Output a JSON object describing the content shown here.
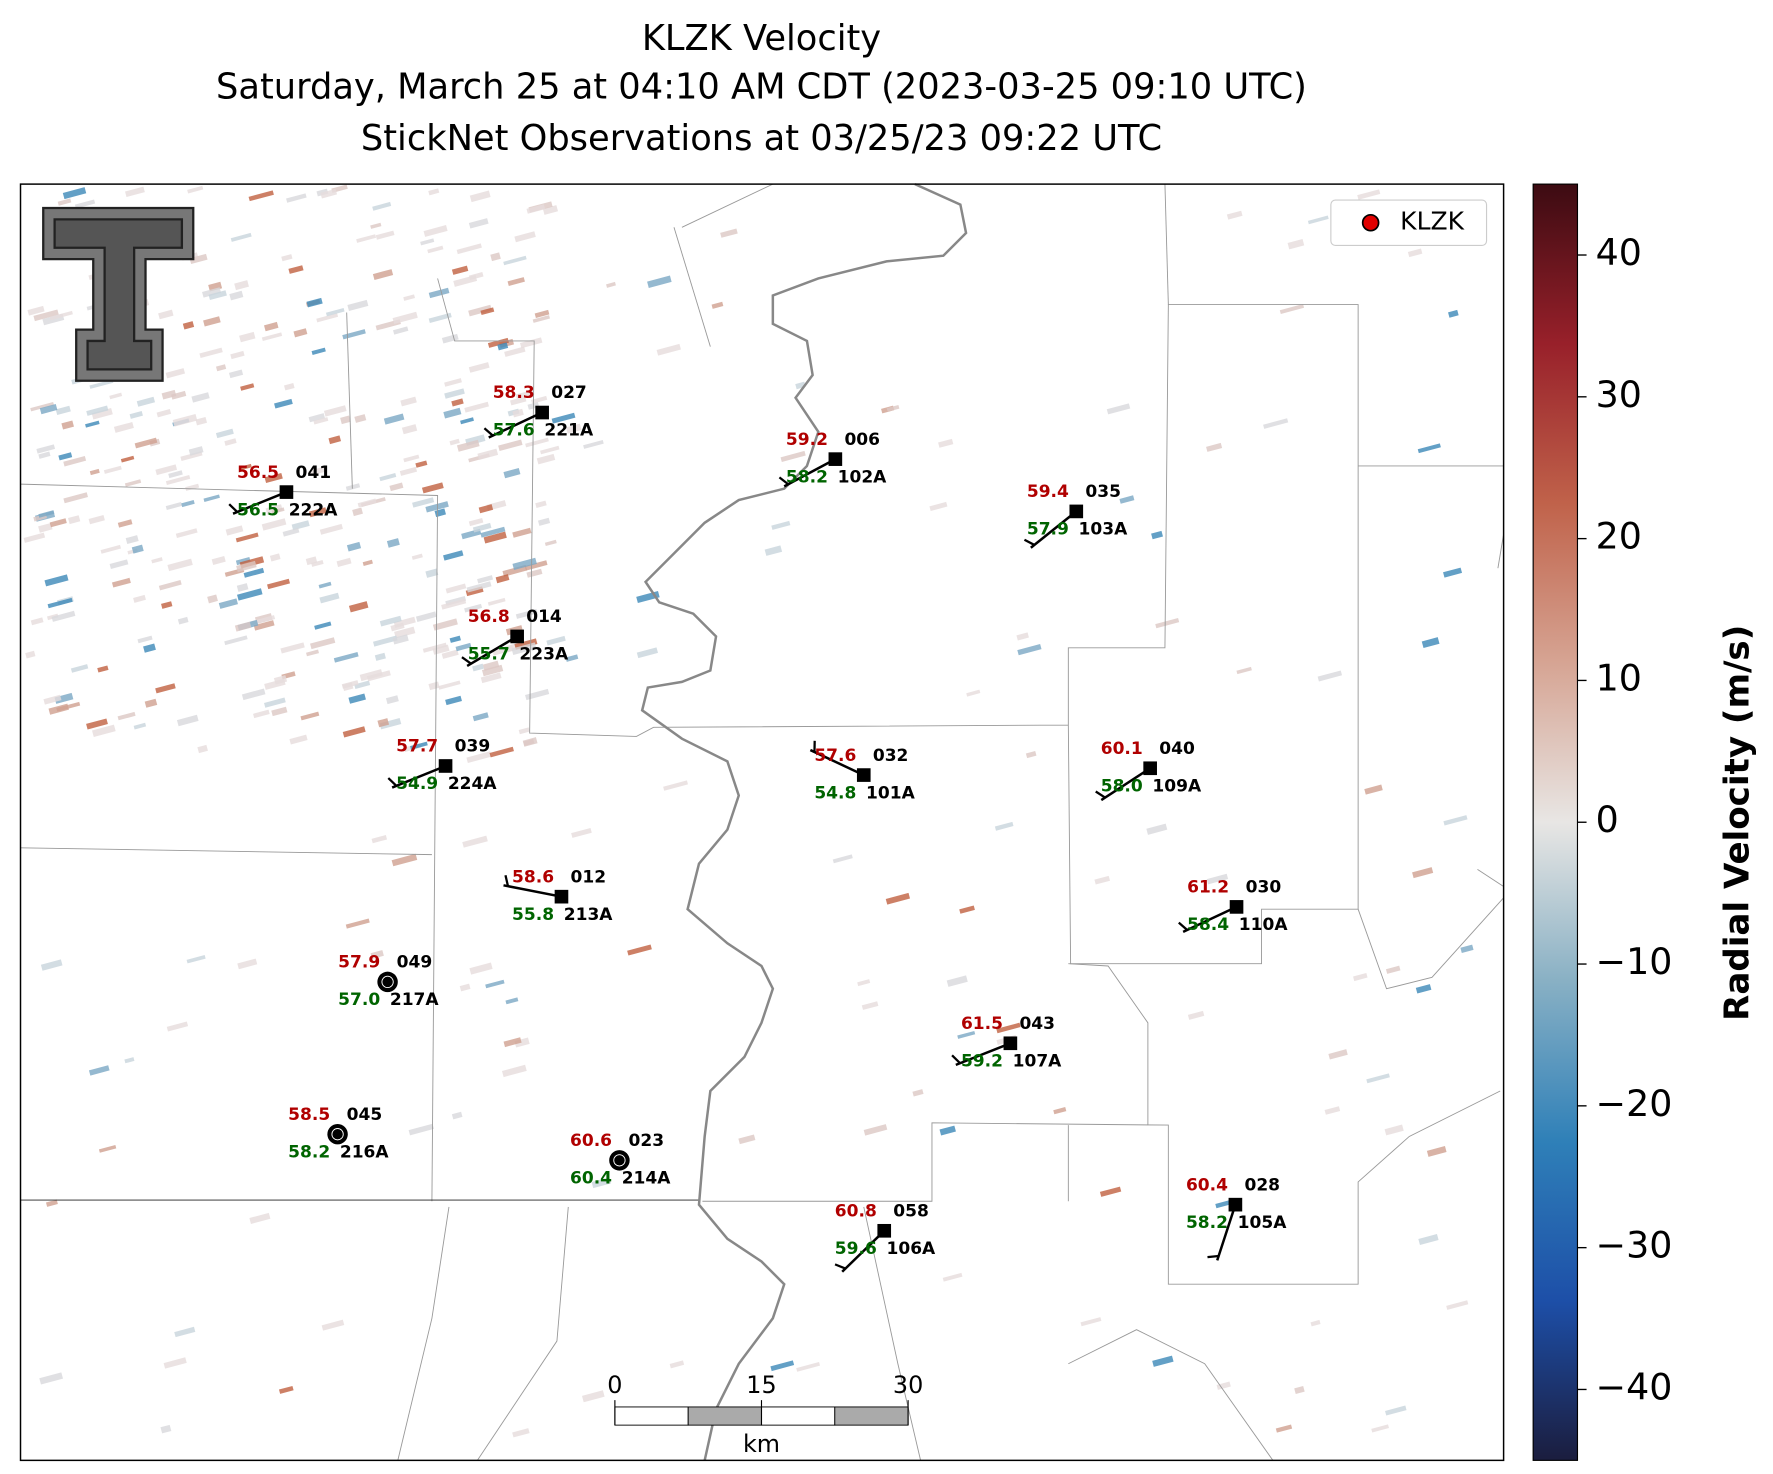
{
  "chart_data": {
    "type": "station-map",
    "title": [
      "KLZK Velocity",
      "Saturday, March 25 at 04:10 AM CDT (2023-03-25 09:10 UTC)",
      "StickNet Observations at 03/25/23 09:22 UTC"
    ],
    "temperature_color": "#b00000",
    "dewpoint_color": "#006400",
    "stations": [
      {
        "temperature": 58.3,
        "dewpoint": 57.6,
        "id": "027",
        "probe": "221A"
      },
      {
        "temperature": 56.5,
        "dewpoint": 56.5,
        "id": "041",
        "probe": "222A"
      },
      {
        "temperature": 59.2,
        "dewpoint": 58.2,
        "id": "006",
        "probe": "102A"
      },
      {
        "temperature": 59.4,
        "dewpoint": 57.9,
        "id": "035",
        "probe": "103A"
      },
      {
        "temperature": 56.8,
        "dewpoint": 55.7,
        "id": "014",
        "probe": "223A"
      },
      {
        "temperature": 57.7,
        "dewpoint": 54.9,
        "id": "039",
        "probe": "224A"
      },
      {
        "temperature": 57.6,
        "dewpoint": 54.8,
        "id": "032",
        "probe": "101A"
      },
      {
        "temperature": 60.1,
        "dewpoint": {
          "value": 58.0,
          "label": "58.0"
        },
        "id": "040",
        "probe": "109A"
      },
      {
        "temperature": 58.6,
        "dewpoint": 55.8,
        "id": "012",
        "probe": "213A"
      },
      {
        "temperature": 61.2,
        "dewpoint": 58.4,
        "id": "030",
        "probe": "110A"
      },
      {
        "temperature": 57.9,
        "dewpoint": {
          "value": 57.0,
          "label": "57.0"
        },
        "id": "049",
        "probe": "217A"
      },
      {
        "temperature": 61.5,
        "dewpoint": 59.2,
        "id": "043",
        "probe": "107A"
      },
      {
        "temperature": 58.5,
        "dewpoint": 58.2,
        "id": "045",
        "probe": "216A"
      },
      {
        "temperature": 60.6,
        "dewpoint": 60.4,
        "id": "023",
        "probe": "214A"
      },
      {
        "temperature": 60.8,
        "dewpoint": 59.6,
        "id": "058",
        "probe": "106A"
      },
      {
        "temperature": 60.4,
        "dewpoint": 58.2,
        "id": "028",
        "probe": "105A"
      }
    ],
    "legend": {
      "label": "KLZK",
      "color": "#e00000"
    },
    "colorbar": {
      "label": "Radial Velocity (m/s)",
      "ylim": [
        -45,
        45
      ],
      "yticks": [
        {
          "value": -40,
          "label": "−40"
        },
        {
          "value": -30,
          "label": "−30"
        },
        {
          "value": -20,
          "label": "−20"
        },
        {
          "value": -10,
          "label": "−10"
        },
        0,
        10,
        20,
        30,
        40
      ],
      "colors": [
        "#1b1d3e",
        "#1d4fa8",
        "#2f80b8",
        "#88b0c4",
        "#e8e6e4",
        "#d6a493",
        "#c0624a",
        "#98202a",
        "#3c0b12"
      ]
    },
    "scale_bar": {
      "ticks": [
        0,
        15,
        30
      ],
      "unit": "km"
    }
  }
}
